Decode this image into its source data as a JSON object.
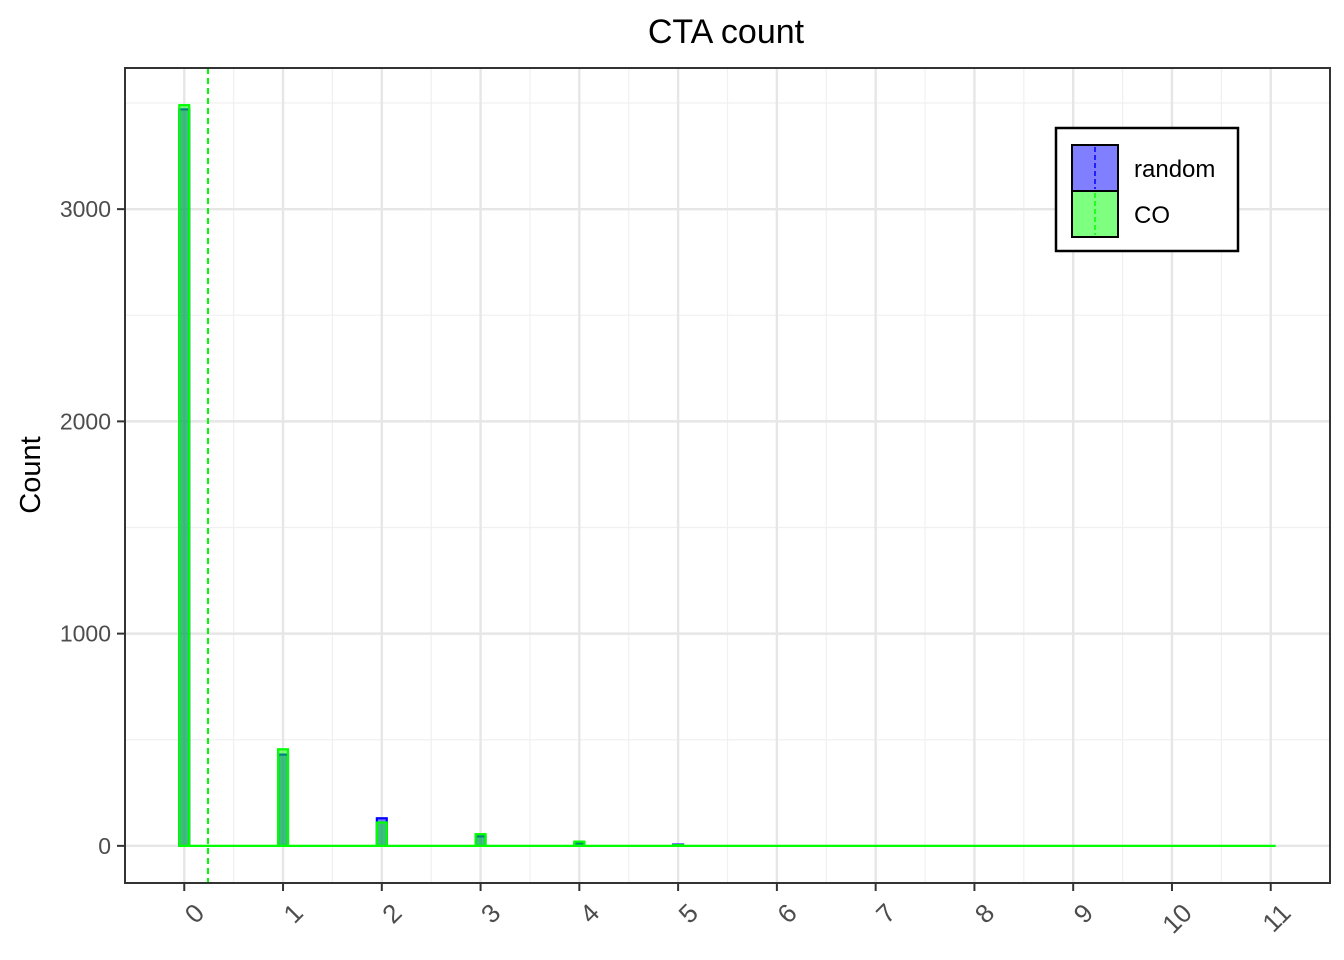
{
  "chart_data": {
    "type": "bar",
    "title": "CTA count",
    "xlabel": "",
    "ylabel": "Count",
    "x_ticks": [
      "0",
      "1",
      "2",
      "3",
      "4",
      "5",
      "6",
      "7",
      "8",
      "9",
      "10",
      "11"
    ],
    "y_ticks": [
      "0",
      "1000",
      "2000",
      "3000"
    ],
    "xlim": [
      -0.6,
      11.6
    ],
    "ylim": [
      -175,
      3665
    ],
    "grid": true,
    "legend_position": "top-right",
    "series": [
      {
        "name": "random",
        "color": "#0000ff",
        "fill": "#7f7fff",
        "x": [
          0,
          1,
          2,
          3,
          4,
          5,
          6,
          7,
          8,
          9,
          10,
          11
        ],
        "values": [
          3470,
          430,
          130,
          45,
          12,
          6,
          0,
          0,
          0,
          0,
          0,
          0
        ],
        "mean": 0.24
      },
      {
        "name": "CO",
        "color": "#00ff00",
        "fill": "#7fff7f",
        "x": [
          0,
          1,
          2,
          3,
          4,
          5,
          6,
          7,
          8,
          9,
          10,
          11
        ],
        "values": [
          3490,
          455,
          110,
          55,
          20,
          3,
          0,
          0,
          0,
          0,
          0,
          0
        ],
        "mean": 0.24
      }
    ]
  }
}
